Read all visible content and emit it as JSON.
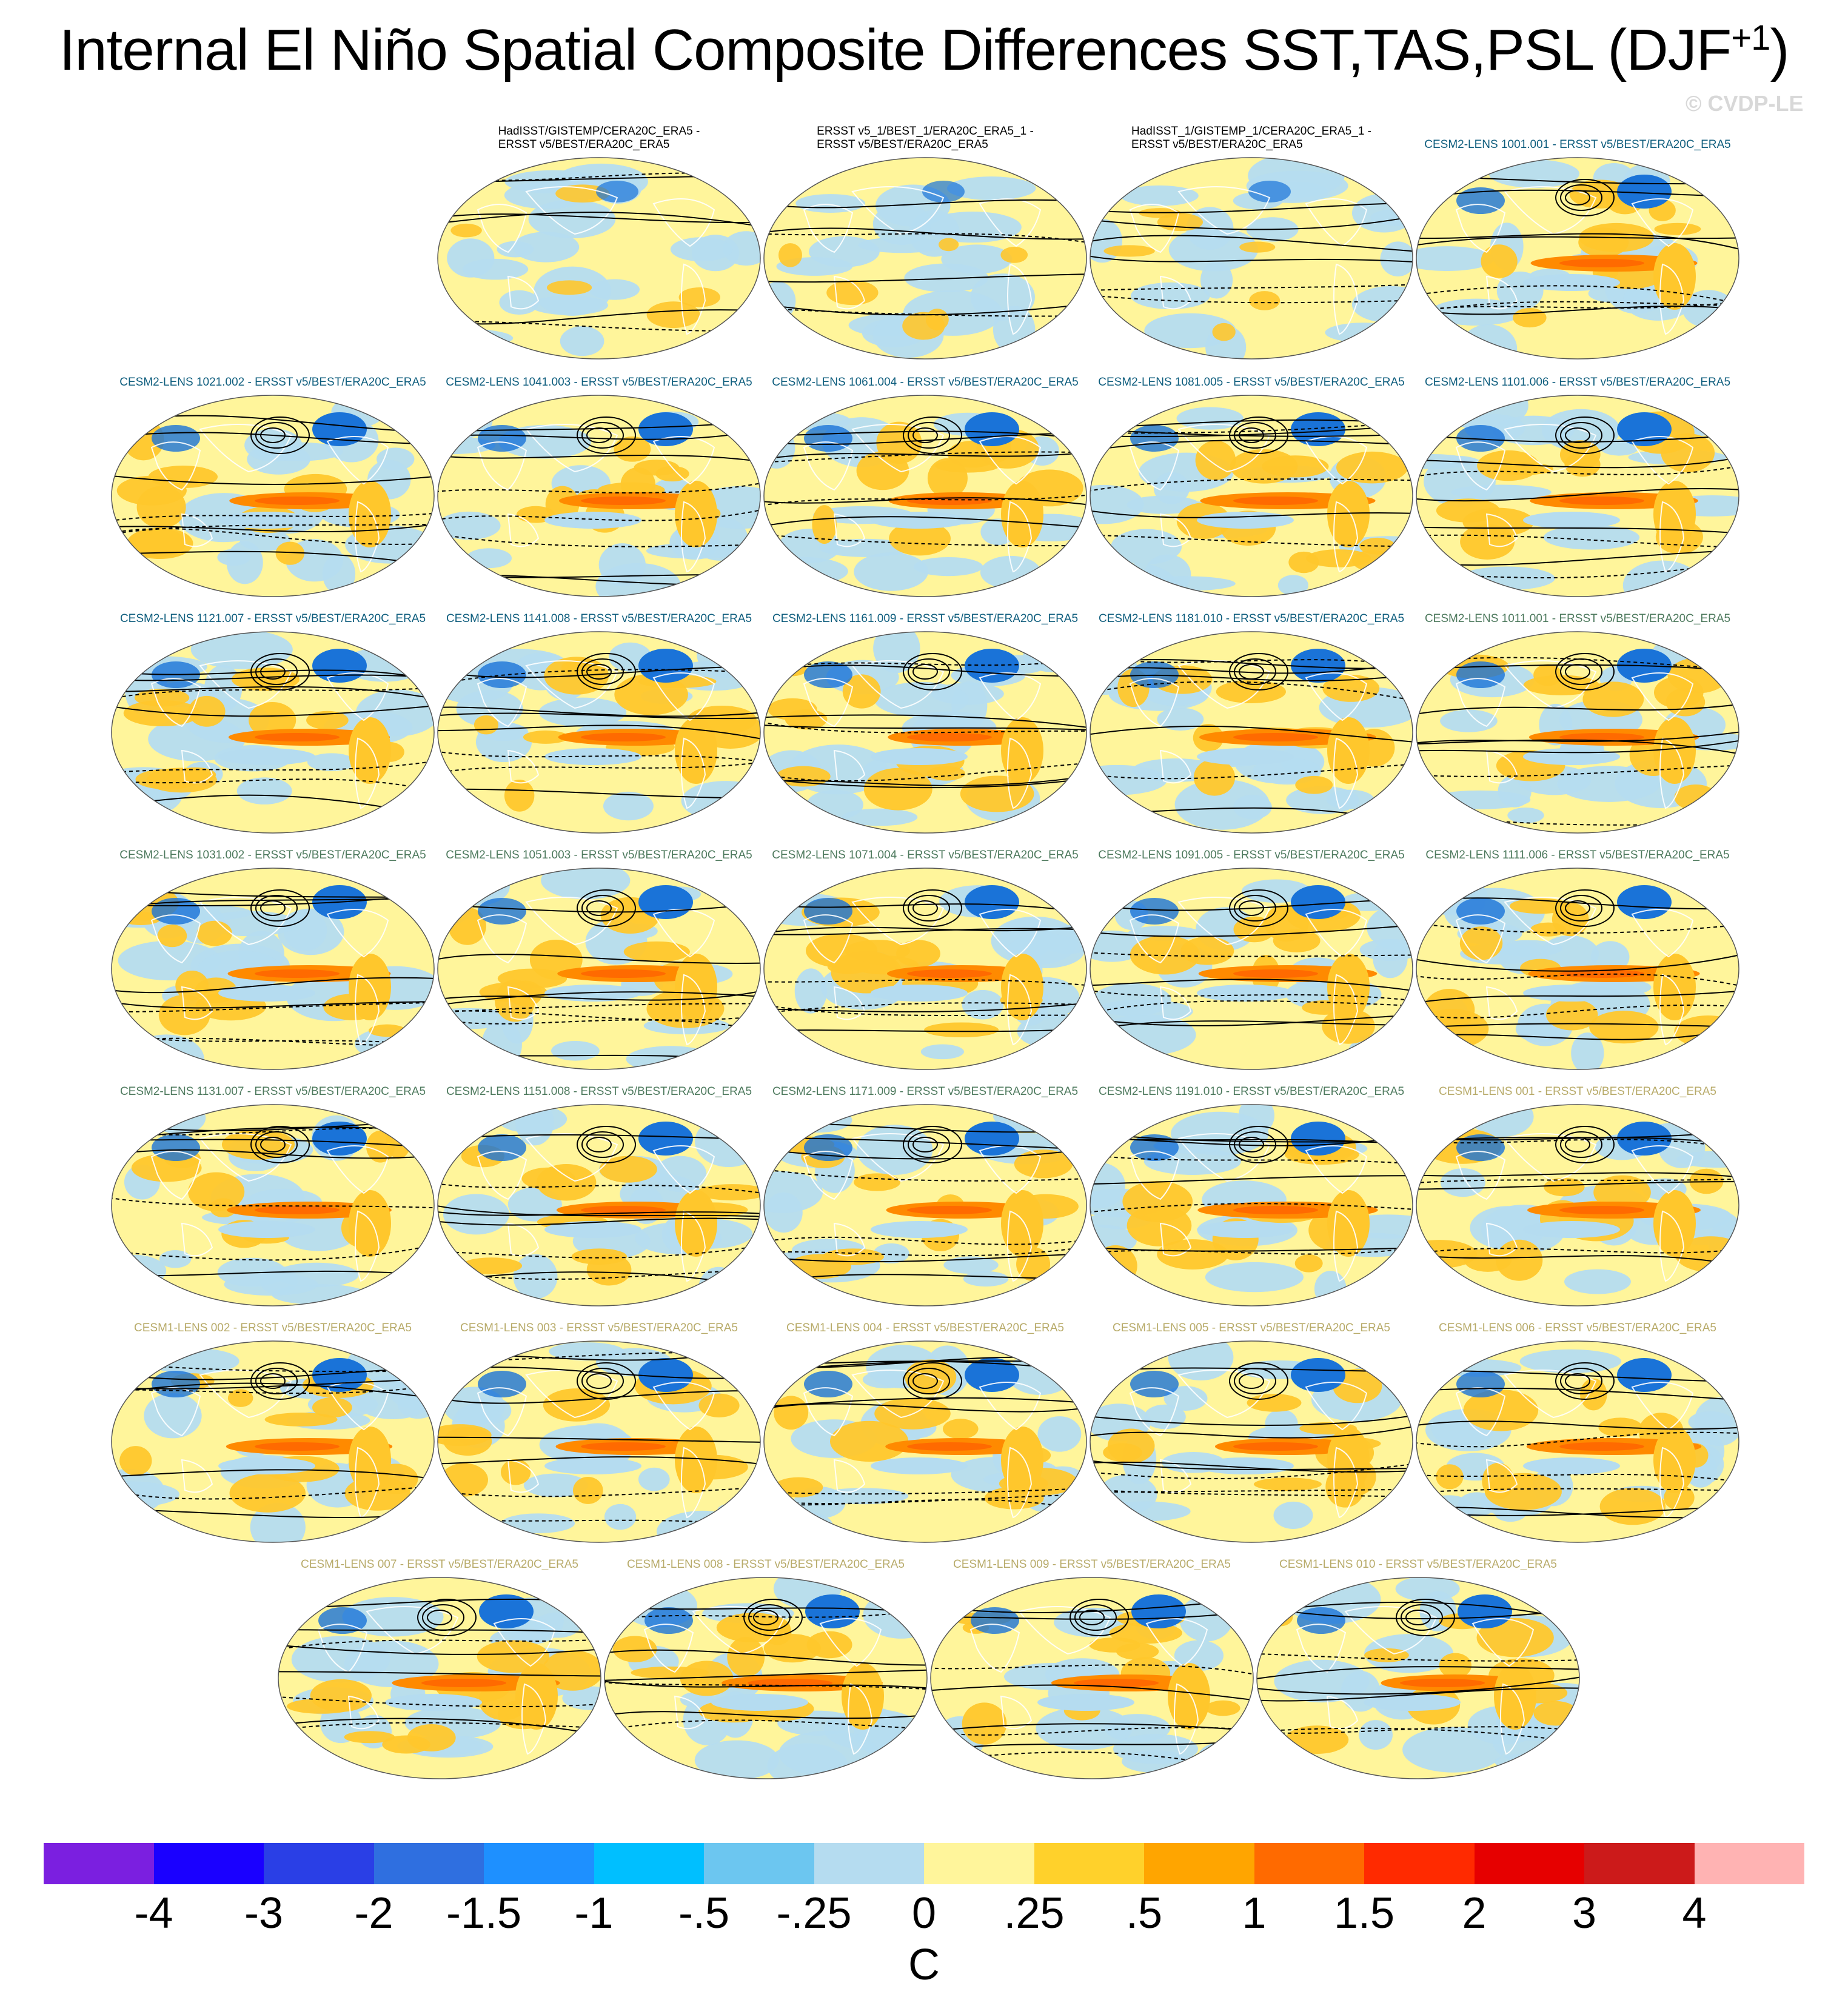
{
  "title": "Internal El Niño Spatial Composite Differences SST,TAS,PSL (DJF",
  "title_sup": "+1",
  "title_close": ")",
  "credit": "© CVDP-LE",
  "colors": {
    "neg_strong": "#1a73d8",
    "neg_weak": "#b5dcf0",
    "pos_weak": "#fff59b",
    "pos_mid": "#ffc72c",
    "pos_strong": "#ff8a00",
    "contour": "#000000"
  },
  "panels": [
    {
      "label": "HadISST/GISTEMP/CERA20C_ERA5 -\nERSST v5/BEST/ERA20C_ERA5",
      "group": "dark",
      "style": "weak"
    },
    {
      "label": "ERSST v5_1/BEST_1/ERA20C_ERA5_1 -\nERSST v5/BEST/ERA20C_ERA5",
      "group": "dark",
      "style": "weak"
    },
    {
      "label": "HadISST_1/GISTEMP_1/CERA20C_ERA5_1 -\nERSST v5/BEST/ERA20C_ERA5",
      "group": "dark",
      "style": "weak"
    },
    {
      "label": "CESM2-LENS 1001.001 - ERSST v5/BEST/ERA20C_ERA5",
      "group": "teal",
      "style": "strong"
    },
    {
      "label": "CESM2-LENS 1021.002 - ERSST v5/BEST/ERA20C_ERA5",
      "group": "teal",
      "style": "strong"
    },
    {
      "label": "CESM2-LENS 1041.003 - ERSST v5/BEST/ERA20C_ERA5",
      "group": "teal",
      "style": "strong"
    },
    {
      "label": "CESM2-LENS 1061.004 - ERSST v5/BEST/ERA20C_ERA5",
      "group": "teal",
      "style": "strong"
    },
    {
      "label": "CESM2-LENS 1081.005 - ERSST v5/BEST/ERA20C_ERA5",
      "group": "teal",
      "style": "strong"
    },
    {
      "label": "CESM2-LENS 1101.006 - ERSST v5/BEST/ERA20C_ERA5",
      "group": "teal",
      "style": "strong"
    },
    {
      "label": "CESM2-LENS 1121.007 - ERSST v5/BEST/ERA20C_ERA5",
      "group": "teal",
      "style": "strong"
    },
    {
      "label": "CESM2-LENS 1141.008 - ERSST v5/BEST/ERA20C_ERA5",
      "group": "teal",
      "style": "strong"
    },
    {
      "label": "CESM2-LENS 1161.009 - ERSST v5/BEST/ERA20C_ERA5",
      "group": "teal",
      "style": "strong"
    },
    {
      "label": "CESM2-LENS 1181.010 - ERSST v5/BEST/ERA20C_ERA5",
      "group": "teal",
      "style": "strong"
    },
    {
      "label": "CESM2-LENS 1011.001 - ERSST v5/BEST/ERA20C_ERA5",
      "group": "green",
      "style": "strong"
    },
    {
      "label": "CESM2-LENS 1031.002 - ERSST v5/BEST/ERA20C_ERA5",
      "group": "green",
      "style": "strong"
    },
    {
      "label": "CESM2-LENS 1051.003 - ERSST v5/BEST/ERA20C_ERA5",
      "group": "green",
      "style": "strong"
    },
    {
      "label": "CESM2-LENS 1071.004 - ERSST v5/BEST/ERA20C_ERA5",
      "group": "green",
      "style": "strong"
    },
    {
      "label": "CESM2-LENS 1091.005 - ERSST v5/BEST/ERA20C_ERA5",
      "group": "green",
      "style": "strong"
    },
    {
      "label": "CESM2-LENS 1111.006 - ERSST v5/BEST/ERA20C_ERA5",
      "group": "green",
      "style": "strong"
    },
    {
      "label": "CESM2-LENS 1131.007 - ERSST v5/BEST/ERA20C_ERA5",
      "group": "green",
      "style": "strong"
    },
    {
      "label": "CESM2-LENS 1151.008 - ERSST v5/BEST/ERA20C_ERA5",
      "group": "green",
      "style": "strong"
    },
    {
      "label": "CESM2-LENS 1171.009 - ERSST v5/BEST/ERA20C_ERA5",
      "group": "green",
      "style": "strong"
    },
    {
      "label": "CESM2-LENS 1191.010 - ERSST v5/BEST/ERA20C_ERA5",
      "group": "green",
      "style": "strong"
    },
    {
      "label": "CESM1-LENS 001 - ERSST v5/BEST/ERA20C_ERA5",
      "group": "khaki",
      "style": "strong"
    },
    {
      "label": "CESM1-LENS 002 - ERSST v5/BEST/ERA20C_ERA5",
      "group": "khaki",
      "style": "strong"
    },
    {
      "label": "CESM1-LENS 003 - ERSST v5/BEST/ERA20C_ERA5",
      "group": "khaki",
      "style": "strong"
    },
    {
      "label": "CESM1-LENS 004 - ERSST v5/BEST/ERA20C_ERA5",
      "group": "khaki",
      "style": "strong"
    },
    {
      "label": "CESM1-LENS 005 - ERSST v5/BEST/ERA20C_ERA5",
      "group": "khaki",
      "style": "strong"
    },
    {
      "label": "CESM1-LENS 006 - ERSST v5/BEST/ERA20C_ERA5",
      "group": "khaki",
      "style": "strong"
    },
    {
      "label": "CESM1-LENS 007 - ERSST v5/BEST/ERA20C_ERA5",
      "group": "khaki",
      "style": "strong"
    },
    {
      "label": "CESM1-LENS 008 - ERSST v5/BEST/ERA20C_ERA5",
      "group": "khaki",
      "style": "strong"
    },
    {
      "label": "CESM1-LENS 009 - ERSST v5/BEST/ERA20C_ERA5",
      "group": "khaki",
      "style": "strong"
    },
    {
      "label": "CESM1-LENS 010 - ERSST v5/BEST/ERA20C_ERA5",
      "group": "khaki",
      "style": "strong"
    }
  ],
  "colorbar": {
    "colors": [
      "#7b1fe0",
      "#1a00ff",
      "#2a3fe6",
      "#2f6fe0",
      "#1e90ff",
      "#00bfff",
      "#6cc6f0",
      "#b5dcf0",
      "#fff59b",
      "#ffd12b",
      "#ffa500",
      "#ff6a00",
      "#ff2a00",
      "#e60000",
      "#cc1a1a",
      "#ffb3b3"
    ],
    "labels": [
      "-4",
      "-3",
      "-2",
      "-1.5",
      "-1",
      "-.5",
      "-.25",
      "0",
      ".25",
      ".5",
      "1",
      "1.5",
      "2",
      "3",
      "4"
    ],
    "unit": "C"
  }
}
